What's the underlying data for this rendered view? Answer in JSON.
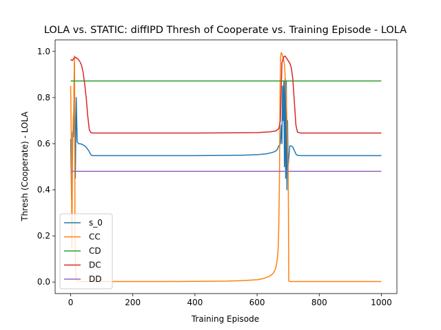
{
  "chart_data": {
    "type": "line",
    "title": "LOLA vs. STATIC: diffIPD Thresh of Cooperate vs. Training Episode - LOLA",
    "xlabel": "Training Episode",
    "ylabel": "Thresh (Cooperate) - LOLA",
    "xlim": [
      -50,
      1050
    ],
    "ylim": [
      -0.05,
      1.05
    ],
    "xticks": [
      0,
      200,
      400,
      600,
      800,
      1000
    ],
    "yticks": [
      0.0,
      0.2,
      0.4,
      0.6,
      0.8,
      1.0
    ],
    "xtick_labels": [
      "0",
      "200",
      "400",
      "600",
      "800",
      "1000"
    ],
    "ytick_labels": [
      "0.0",
      "0.2",
      "0.4",
      "0.6",
      "0.8",
      "1.0"
    ],
    "grid": false,
    "legend_position": "lower-left",
    "series": [
      {
        "name": "s_0",
        "color": "#1f77b4",
        "x": [
          0,
          3,
          6,
          9,
          12,
          15,
          18,
          21,
          25,
          30,
          40,
          50,
          60,
          65,
          70,
          80,
          100,
          200,
          300,
          400,
          500,
          550,
          600,
          630,
          650,
          660,
          665,
          670,
          675,
          678,
          680,
          682,
          684,
          686,
          688,
          690,
          692,
          694,
          696,
          698,
          700,
          705,
          710,
          715,
          720,
          725,
          730,
          740,
          760,
          800,
          900,
          1000
        ],
        "y": [
          0.62,
          0.36,
          0.65,
          0.63,
          0.95,
          0.45,
          0.8,
          0.61,
          0.6,
          0.6,
          0.595,
          0.585,
          0.565,
          0.552,
          0.548,
          0.548,
          0.548,
          0.548,
          0.548,
          0.548,
          0.549,
          0.55,
          0.552,
          0.556,
          0.562,
          0.568,
          0.575,
          0.59,
          0.6,
          0.68,
          0.6,
          0.85,
          0.7,
          0.87,
          0.5,
          0.88,
          0.45,
          0.87,
          0.4,
          0.7,
          0.5,
          0.59,
          0.59,
          0.585,
          0.57,
          0.555,
          0.549,
          0.548,
          0.548,
          0.548,
          0.548,
          0.548
        ]
      },
      {
        "name": "CC",
        "color": "#ff7f0e",
        "x": [
          0,
          2,
          4,
          6,
          8,
          10,
          12,
          14,
          16,
          18,
          20,
          25,
          30,
          50,
          100,
          200,
          300,
          400,
          500,
          550,
          600,
          620,
          640,
          650,
          655,
          660,
          663,
          666,
          668,
          670,
          672,
          674,
          676,
          678,
          680,
          682,
          684,
          686,
          688,
          690,
          692,
          694,
          696,
          698,
          700,
          701,
          702,
          705,
          720,
          800,
          900,
          1000
        ],
        "y": [
          0.85,
          0.62,
          0.15,
          0.55,
          0.7,
          0.75,
          0.98,
          0.2,
          0.05,
          0.01,
          0.005,
          0.003,
          0.002,
          0.002,
          0.002,
          0.002,
          0.002,
          0.003,
          0.004,
          0.006,
          0.01,
          0.015,
          0.025,
          0.035,
          0.045,
          0.06,
          0.08,
          0.11,
          0.15,
          0.25,
          0.45,
          0.85,
          0.98,
          0.995,
          0.99,
          0.98,
          0.97,
          0.96,
          0.94,
          0.9,
          0.85,
          0.8,
          0.7,
          0.6,
          0.5,
          0.3,
          0.005,
          0.002,
          0.002,
          0.002,
          0.002,
          0.002
        ]
      },
      {
        "name": "CD",
        "color": "#2ca02c",
        "x": [
          0,
          1000
        ],
        "y": [
          0.872,
          0.872
        ]
      },
      {
        "name": "DC",
        "color": "#d62728",
        "x": [
          0,
          5,
          10,
          15,
          20,
          25,
          30,
          35,
          40,
          45,
          50,
          55,
          60,
          65,
          70,
          80,
          100,
          200,
          300,
          400,
          500,
          600,
          640,
          660,
          670,
          675,
          680,
          685,
          690,
          695,
          700,
          705,
          710,
          715,
          720,
          725,
          730,
          740,
          760,
          800,
          900,
          1000
        ],
        "y": [
          0.965,
          0.96,
          0.97,
          0.975,
          0.97,
          0.965,
          0.955,
          0.94,
          0.91,
          0.86,
          0.8,
          0.72,
          0.66,
          0.648,
          0.646,
          0.646,
          0.646,
          0.646,
          0.646,
          0.646,
          0.647,
          0.648,
          0.651,
          0.655,
          0.665,
          0.7,
          0.95,
          0.975,
          0.98,
          0.97,
          0.96,
          0.95,
          0.93,
          0.88,
          0.78,
          0.68,
          0.65,
          0.646,
          0.646,
          0.646,
          0.646,
          0.646
        ]
      },
      {
        "name": "DD",
        "color": "#9467bd",
        "x": [
          0,
          1000
        ],
        "y": [
          0.48,
          0.48
        ]
      }
    ]
  }
}
